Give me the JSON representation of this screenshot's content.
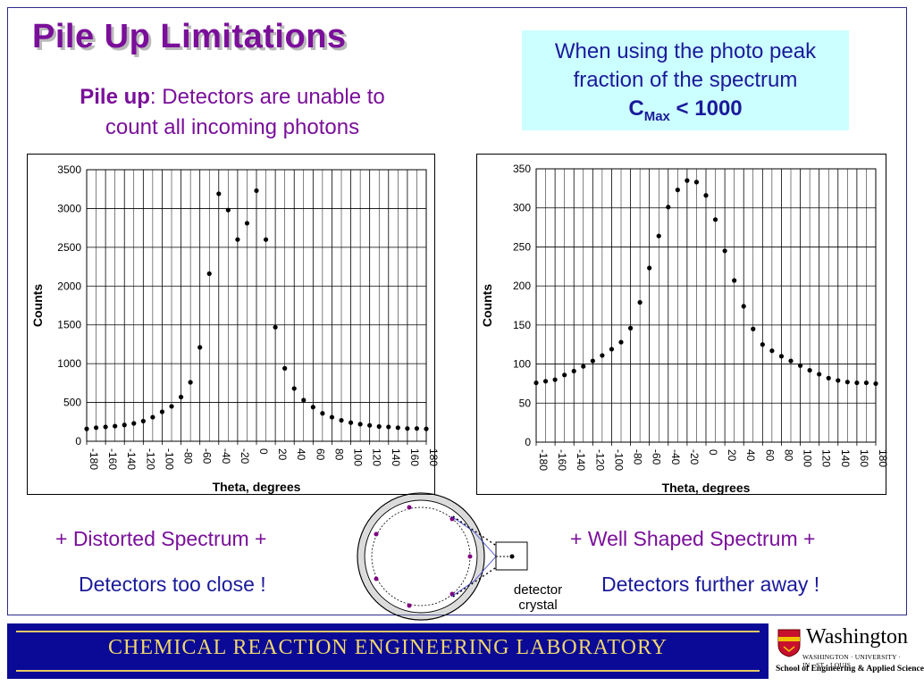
{
  "slide": {
    "title": "Pile Up Limitations",
    "pileup_bold": "Pile up",
    "pileup_rest": ":  Detectors are unable to count all incoming photons",
    "info_line1": "When using the photo peak",
    "info_line2": "fraction of the spectrum",
    "cmax_c": "C",
    "cmax_sub": "Max",
    "cmax_rest": " < 1000",
    "left_caption1": "+ Distorted Spectrum +",
    "left_caption2": "Detectors too close !",
    "right_caption1": "+ Well Shaped Spectrum +",
    "right_caption2": "Detectors further away !",
    "detector_label1": "detector",
    "detector_label2": "crystal",
    "footer": "CHEMICAL  REACTION  ENGINEERING  LABORATORY",
    "logo_name": "Washington",
    "logo_univ": "WASHINGTON · UNIVERSITY · IN · ST · LOUIS",
    "logo_school": "School of Engineering & Applied Science"
  },
  "colors": {
    "title": "#7a0f9a",
    "text_purple": "#7a0f9a",
    "text_blue": "#1a1a9a",
    "info_bg": "#ccffff",
    "footer_bg": "#0a0a96",
    "footer_text": "#f0d56e"
  },
  "chart_data": [
    {
      "type": "scatter",
      "xlabel": "Theta, degrees",
      "ylabel": "Counts",
      "xlim": [
        -180,
        180
      ],
      "ylim": [
        0,
        3500
      ],
      "yticks": [
        0,
        500,
        1000,
        1500,
        2000,
        2500,
        3000,
        3500
      ],
      "xticks": [
        -180,
        -160,
        -140,
        -120,
        -100,
        -80,
        -60,
        -40,
        -20,
        0,
        20,
        40,
        60,
        80,
        100,
        120,
        140,
        160,
        180
      ],
      "grid": true,
      "legend": "none",
      "x": [
        -180,
        -170,
        -160,
        -150,
        -140,
        -130,
        -120,
        -110,
        -100,
        -90,
        -80,
        -70,
        -60,
        -50,
        -40,
        -30,
        -20,
        -10,
        0,
        10,
        20,
        30,
        40,
        50,
        60,
        70,
        80,
        90,
        100,
        110,
        120,
        130,
        140,
        150,
        160,
        170,
        180
      ],
      "y": [
        160,
        175,
        185,
        195,
        210,
        230,
        260,
        310,
        380,
        450,
        570,
        760,
        1210,
        2160,
        3190,
        2980,
        2600,
        2810,
        3230,
        2600,
        1470,
        940,
        680,
        530,
        440,
        360,
        310,
        270,
        240,
        220,
        205,
        190,
        185,
        175,
        165,
        165,
        160
      ]
    },
    {
      "type": "scatter",
      "xlabel": "Theta, degrees",
      "ylabel": "Counts",
      "xlim": [
        -180,
        180
      ],
      "ylim": [
        0,
        350
      ],
      "yticks": [
        0,
        50,
        100,
        150,
        200,
        250,
        300,
        350
      ],
      "xticks": [
        -180,
        -160,
        -140,
        -120,
        -100,
        -80,
        -60,
        -40,
        -20,
        0,
        20,
        40,
        60,
        80,
        100,
        120,
        140,
        160,
        180
      ],
      "grid": true,
      "legend": "none",
      "x": [
        -180,
        -170,
        -160,
        -150,
        -140,
        -130,
        -120,
        -110,
        -100,
        -90,
        -80,
        -70,
        -60,
        -50,
        -40,
        -30,
        -20,
        -10,
        0,
        10,
        20,
        30,
        40,
        50,
        60,
        70,
        80,
        90,
        100,
        110,
        120,
        130,
        140,
        150,
        160,
        170,
        180
      ],
      "y": [
        76,
        78,
        80,
        86,
        91,
        97,
        104,
        111,
        119,
        128,
        146,
        179,
        223,
        264,
        301,
        323,
        335,
        333,
        316,
        285,
        245,
        207,
        174,
        145,
        125,
        117,
        110,
        104,
        98,
        92,
        87,
        82,
        79,
        77,
        76,
        76,
        75
      ]
    }
  ]
}
